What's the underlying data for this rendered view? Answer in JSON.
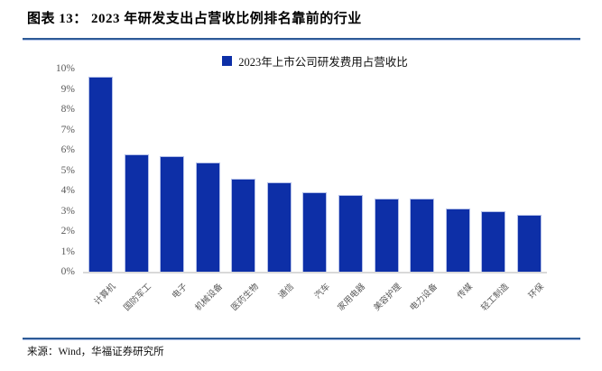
{
  "header": {
    "title": "图表 13： 2023 年研发支出占营收比例排名靠前的行业"
  },
  "chart_data": {
    "type": "bar",
    "title": "",
    "legend": "2023年上市公司研发费用占营收比",
    "legend_position": "top-center",
    "categories": [
      "计算机",
      "国防军工",
      "电子",
      "机械设备",
      "医药生物",
      "通信",
      "汽车",
      "家用电器",
      "美容护理",
      "电力设备",
      "传媒",
      "轻工制造",
      "环保"
    ],
    "values": [
      9.6,
      5.8,
      5.7,
      5.4,
      4.6,
      4.4,
      3.9,
      3.8,
      3.6,
      3.6,
      3.1,
      3.0,
      2.8
    ],
    "unit": "%",
    "xlabel": "",
    "ylabel": "",
    "ylim": [
      0,
      10
    ],
    "yticks": [
      "0%",
      "1%",
      "2%",
      "3%",
      "4%",
      "5%",
      "6%",
      "7%",
      "8%",
      "9%",
      "10%"
    ],
    "grid": false,
    "bar_color": "#0d2fa7"
  },
  "footer": {
    "source": "来源：Wind，华福证券研究所"
  },
  "colors": {
    "bar": "#0d2fa7",
    "rule": "#2d5b97",
    "axis_label": "#595959"
  }
}
